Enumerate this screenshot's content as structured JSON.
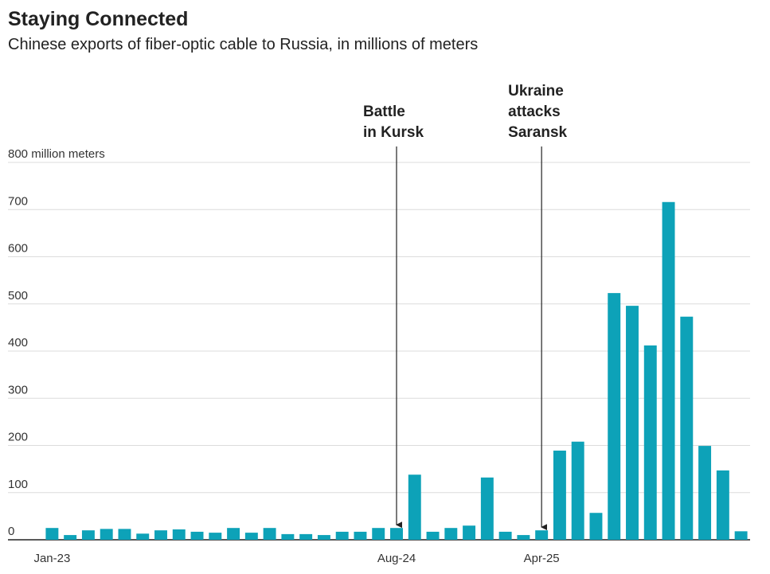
{
  "chart_data": {
    "type": "bar",
    "title": "Staying Connected",
    "subtitle": "Chinese exports of fiber-optic cable to Russia, in millions of meters",
    "categories": [
      "Jan-23",
      null,
      null,
      null,
      null,
      null,
      null,
      null,
      null,
      null,
      null,
      null,
      null,
      null,
      null,
      null,
      null,
      null,
      null,
      "Aug-24",
      null,
      null,
      null,
      null,
      null,
      null,
      null,
      "Apr-25",
      null,
      null,
      null,
      null,
      null,
      null,
      null,
      null,
      null,
      null,
      null
    ],
    "values": [
      25,
      10,
      20,
      23,
      23,
      13,
      20,
      22,
      17,
      15,
      25,
      15,
      25,
      12,
      12,
      10,
      17,
      17,
      25,
      25,
      138,
      17,
      25,
      30,
      132,
      17,
      10,
      20,
      189,
      208,
      57,
      523,
      496,
      412,
      716,
      473,
      199,
      147,
      18
    ],
    "color": "#0da2b8",
    "ylim": [
      0,
      800
    ],
    "yticks": [
      0,
      100,
      200,
      300,
      400,
      500,
      600,
      700,
      {
        "value": 800,
        "label": "800 million meters"
      }
    ],
    "grid": true,
    "annotations": [
      {
        "lines": [
          "Battle",
          "in Kursk"
        ],
        "at": "Aug-24"
      },
      {
        "lines": [
          "Ukraine",
          "attacks",
          "Saransk"
        ],
        "at": "Apr-25"
      }
    ]
  }
}
